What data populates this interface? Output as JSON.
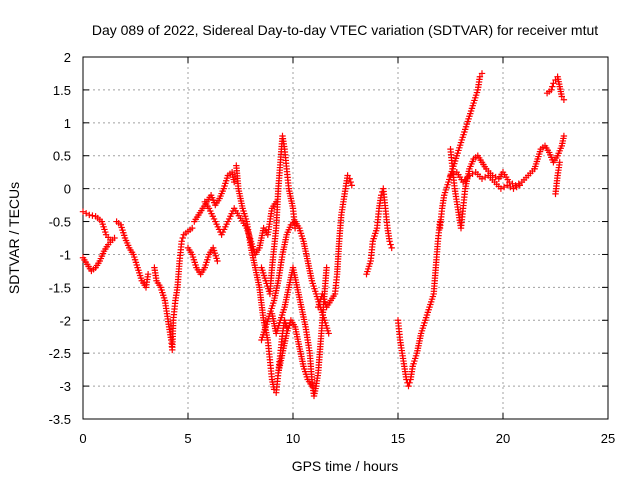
{
  "chart_data": {
    "type": "scatter",
    "title": "Day 089 of 2022, Sidereal Day-to-day VTEC variation (SDTVAR) for receiver mtut",
    "xlabel": "GPS time / hours",
    "ylabel": "SDTVAR / TECUs",
    "xlim": [
      0,
      25
    ],
    "ylim": [
      -3.5,
      2
    ],
    "xticks": [
      0,
      5,
      10,
      15,
      20,
      25
    ],
    "xtick_labels": [
      "0",
      "5",
      "10",
      "15",
      "20",
      "25"
    ],
    "yticks": [
      -3.5,
      -3,
      -2.5,
      -2,
      -1.5,
      -1,
      -0.5,
      0,
      0.5,
      1,
      1.5,
      2
    ],
    "ytick_labels": [
      "-3.5",
      "-3",
      "-2.5",
      "-2",
      "-1.5",
      "-1",
      "-0.5",
      "0",
      "0.5",
      "1",
      "1.5",
      "2"
    ],
    "grid": true,
    "marker": "plus",
    "color": "#ff0000",
    "series": [
      {
        "values": [
          [
            0.0,
            -0.35
          ],
          [
            0.3,
            -0.4
          ],
          [
            0.6,
            -0.42
          ],
          [
            0.9,
            -0.5
          ],
          [
            1.1,
            -0.7
          ],
          [
            1.3,
            -0.78
          ],
          [
            1.5,
            -0.75
          ]
        ]
      },
      {
        "values": [
          [
            0.0,
            -1.05
          ],
          [
            0.2,
            -1.15
          ],
          [
            0.4,
            -1.25
          ],
          [
            0.6,
            -1.2
          ],
          [
            0.8,
            -1.1
          ],
          [
            1.0,
            -0.95
          ],
          [
            1.2,
            -0.85
          ],
          [
            1.4,
            -0.78
          ]
        ]
      },
      {
        "values": [
          [
            1.6,
            -0.5
          ],
          [
            1.8,
            -0.55
          ],
          [
            2.0,
            -0.75
          ],
          [
            2.2,
            -0.9
          ],
          [
            2.4,
            -1.0
          ],
          [
            2.6,
            -1.2
          ],
          [
            2.8,
            -1.4
          ],
          [
            3.0,
            -1.5
          ],
          [
            3.1,
            -1.3
          ]
        ]
      },
      {
        "values": [
          [
            3.4,
            -1.2
          ],
          [
            3.5,
            -1.4
          ],
          [
            3.7,
            -1.5
          ],
          [
            3.9,
            -1.7
          ],
          [
            4.0,
            -1.9
          ],
          [
            4.1,
            -2.1
          ],
          [
            4.2,
            -2.3
          ],
          [
            4.25,
            -2.45
          ],
          [
            4.3,
            -2.0
          ],
          [
            4.4,
            -1.7
          ],
          [
            4.5,
            -1.5
          ],
          [
            4.6,
            -1.1
          ],
          [
            4.7,
            -0.8
          ],
          [
            4.8,
            -0.7
          ],
          [
            5.0,
            -0.65
          ],
          [
            5.2,
            -0.6
          ]
        ]
      },
      {
        "values": [
          [
            5.0,
            -0.9
          ],
          [
            5.2,
            -1.0
          ],
          [
            5.4,
            -1.2
          ],
          [
            5.6,
            -1.3
          ],
          [
            5.8,
            -1.2
          ],
          [
            6.0,
            -1.0
          ],
          [
            6.2,
            -0.9
          ],
          [
            6.4,
            -1.1
          ]
        ]
      },
      {
        "values": [
          [
            5.3,
            -0.5
          ],
          [
            5.5,
            -0.4
          ],
          [
            5.7,
            -0.3
          ],
          [
            5.9,
            -0.2
          ],
          [
            6.1,
            -0.1
          ],
          [
            6.3,
            -0.25
          ],
          [
            6.5,
            -0.15
          ],
          [
            6.7,
            0.0
          ],
          [
            6.9,
            0.2
          ],
          [
            7.1,
            0.25
          ],
          [
            7.2,
            0.1
          ]
        ]
      },
      {
        "values": [
          [
            5.8,
            -0.2
          ],
          [
            6.0,
            -0.3
          ],
          [
            6.3,
            -0.5
          ],
          [
            6.6,
            -0.7
          ],
          [
            6.9,
            -0.5
          ],
          [
            7.2,
            -0.3
          ],
          [
            7.5,
            -0.45
          ],
          [
            7.8,
            -0.6
          ],
          [
            8.0,
            -0.8
          ],
          [
            8.2,
            -1.0
          ],
          [
            8.4,
            -0.9
          ],
          [
            8.6,
            -0.6
          ],
          [
            8.8,
            -0.7
          ],
          [
            9.0,
            -0.3
          ],
          [
            9.2,
            -0.2
          ]
        ]
      },
      {
        "values": [
          [
            7.3,
            0.35
          ],
          [
            7.4,
            0.0
          ],
          [
            7.6,
            -0.3
          ],
          [
            7.8,
            -0.5
          ],
          [
            8.0,
            -0.9
          ],
          [
            8.2,
            -1.2
          ],
          [
            8.4,
            -1.5
          ],
          [
            8.6,
            -2.0
          ],
          [
            8.8,
            -2.3
          ],
          [
            8.9,
            -2.6
          ],
          [
            9.0,
            -2.9
          ],
          [
            9.1,
            -3.05
          ],
          [
            9.2,
            -3.1
          ],
          [
            9.3,
            -2.8
          ],
          [
            9.4,
            -2.5
          ],
          [
            9.5,
            -2.2
          ],
          [
            9.6,
            -2.0
          ],
          [
            9.7,
            -2.1
          ]
        ]
      },
      {
        "values": [
          [
            8.5,
            -1.2
          ],
          [
            8.7,
            -1.4
          ],
          [
            8.9,
            -1.6
          ],
          [
            9.0,
            -1.2
          ],
          [
            9.2,
            -0.6
          ],
          [
            9.3,
            0.0
          ],
          [
            9.4,
            0.4
          ],
          [
            9.5,
            0.8
          ],
          [
            9.6,
            0.6
          ],
          [
            9.7,
            0.3
          ],
          [
            9.8,
            0.0
          ],
          [
            10.0,
            -0.3
          ],
          [
            10.1,
            -0.6
          ]
        ]
      },
      {
        "values": [
          [
            8.5,
            -2.3
          ],
          [
            8.7,
            -2.1
          ],
          [
            8.9,
            -1.9
          ],
          [
            9.1,
            -1.7
          ],
          [
            9.3,
            -1.4
          ],
          [
            9.5,
            -1.0
          ],
          [
            9.7,
            -0.7
          ],
          [
            9.9,
            -0.55
          ],
          [
            10.1,
            -0.5
          ],
          [
            10.3,
            -0.6
          ],
          [
            10.5,
            -0.8
          ],
          [
            10.7,
            -1.1
          ],
          [
            10.9,
            -1.4
          ],
          [
            11.1,
            -1.6
          ],
          [
            11.3,
            -1.8
          ],
          [
            11.5,
            -2.0
          ],
          [
            11.7,
            -2.2
          ]
        ]
      },
      {
        "values": [
          [
            9.0,
            -1.9
          ],
          [
            9.2,
            -2.2
          ],
          [
            9.4,
            -2.0
          ],
          [
            9.6,
            -1.8
          ],
          [
            9.8,
            -1.5
          ],
          [
            10.0,
            -1.2
          ],
          [
            10.2,
            -1.5
          ],
          [
            10.4,
            -1.8
          ],
          [
            10.6,
            -2.1
          ],
          [
            10.8,
            -2.5
          ],
          [
            10.9,
            -2.9
          ],
          [
            11.0,
            -3.15
          ],
          [
            11.1,
            -3.0
          ],
          [
            11.2,
            -2.8
          ],
          [
            11.3,
            -2.4
          ],
          [
            11.4,
            -2.0
          ],
          [
            11.5,
            -1.6
          ],
          [
            11.6,
            -1.2
          ]
        ]
      },
      {
        "values": [
          [
            9.3,
            -2.8
          ],
          [
            9.5,
            -2.5
          ],
          [
            9.7,
            -2.2
          ],
          [
            9.9,
            -2.0
          ],
          [
            10.1,
            -2.1
          ],
          [
            10.3,
            -2.4
          ],
          [
            10.5,
            -2.7
          ],
          [
            10.7,
            -2.9
          ],
          [
            10.9,
            -3.0
          ]
        ]
      },
      {
        "values": [
          [
            11.2,
            -1.8
          ],
          [
            11.4,
            -1.6
          ],
          [
            11.6,
            -1.8
          ],
          [
            11.8,
            -1.7
          ],
          [
            12.0,
            -1.6
          ],
          [
            12.1,
            -1.3
          ],
          [
            12.2,
            -0.8
          ],
          [
            12.3,
            -0.4
          ],
          [
            12.5,
            0.0
          ],
          [
            12.6,
            0.2
          ],
          [
            12.7,
            0.15
          ],
          [
            12.8,
            0.05
          ]
        ]
      },
      {
        "values": [
          [
            13.5,
            -1.3
          ],
          [
            13.7,
            -1.1
          ],
          [
            13.8,
            -0.8
          ],
          [
            14.0,
            -0.6
          ],
          [
            14.1,
            -0.3
          ],
          [
            14.2,
            -0.1
          ],
          [
            14.3,
            0.0
          ],
          [
            14.4,
            -0.3
          ],
          [
            14.5,
            -0.6
          ],
          [
            14.6,
            -0.8
          ],
          [
            14.7,
            -0.9
          ]
        ]
      },
      {
        "values": [
          [
            15.0,
            -2.0
          ],
          [
            15.1,
            -2.3
          ],
          [
            15.2,
            -2.5
          ],
          [
            15.3,
            -2.7
          ],
          [
            15.4,
            -2.9
          ],
          [
            15.5,
            -3.0
          ],
          [
            15.6,
            -2.9
          ],
          [
            15.7,
            -2.7
          ],
          [
            15.9,
            -2.5
          ],
          [
            16.1,
            -2.2
          ],
          [
            16.3,
            -2.0
          ],
          [
            16.5,
            -1.8
          ],
          [
            16.7,
            -1.6
          ],
          [
            16.8,
            -1.2
          ],
          [
            16.9,
            -0.8
          ],
          [
            17.0,
            -0.5
          ]
        ]
      },
      {
        "values": [
          [
            17.0,
            -0.6
          ],
          [
            17.1,
            -0.3
          ],
          [
            17.2,
            -0.1
          ],
          [
            17.4,
            0.1
          ],
          [
            17.6,
            0.3
          ],
          [
            17.8,
            0.5
          ],
          [
            18.0,
            0.7
          ],
          [
            18.2,
            0.9
          ],
          [
            18.4,
            1.1
          ],
          [
            18.6,
            1.3
          ],
          [
            18.8,
            1.5
          ],
          [
            18.9,
            1.7
          ],
          [
            19.0,
            1.75
          ]
        ]
      },
      {
        "values": [
          [
            17.5,
            0.6
          ],
          [
            17.6,
            0.3
          ],
          [
            17.7,
            0.0
          ],
          [
            17.8,
            -0.2
          ],
          [
            17.9,
            -0.4
          ],
          [
            18.0,
            -0.6
          ],
          [
            18.1,
            -0.3
          ],
          [
            18.2,
            0.0
          ],
          [
            18.4,
            0.3
          ],
          [
            18.6,
            0.45
          ],
          [
            18.8,
            0.5
          ],
          [
            19.0,
            0.4
          ],
          [
            19.2,
            0.3
          ],
          [
            19.5,
            0.2
          ],
          [
            19.8,
            0.15
          ],
          [
            20.0,
            0.25
          ],
          [
            20.3,
            0.1
          ],
          [
            20.6,
            0.05
          ],
          [
            20.9,
            0.1
          ],
          [
            21.2,
            0.2
          ],
          [
            21.5,
            0.3
          ]
        ]
      },
      {
        "values": [
          [
            17.5,
            0.2
          ],
          [
            17.8,
            0.25
          ],
          [
            18.1,
            0.1
          ],
          [
            18.4,
            0.2
          ],
          [
            18.7,
            0.25
          ],
          [
            19.0,
            0.15
          ],
          [
            19.3,
            0.2
          ],
          [
            19.6,
            0.1
          ],
          [
            19.9,
            0.0
          ],
          [
            20.2,
            0.05
          ],
          [
            20.5,
            0.0
          ],
          [
            20.8,
            0.05
          ]
        ]
      },
      {
        "values": [
          [
            21.5,
            0.3
          ],
          [
            21.8,
            0.6
          ],
          [
            22.0,
            0.65
          ],
          [
            22.2,
            0.55
          ],
          [
            22.4,
            0.4
          ],
          [
            22.6,
            0.5
          ],
          [
            22.8,
            0.65
          ],
          [
            22.9,
            0.8
          ]
        ]
      },
      {
        "values": [
          [
            22.1,
            1.45
          ],
          [
            22.3,
            1.5
          ],
          [
            22.4,
            1.6
          ],
          [
            22.5,
            1.65
          ],
          [
            22.6,
            1.7
          ],
          [
            22.7,
            1.55
          ],
          [
            22.8,
            1.4
          ],
          [
            22.9,
            1.35
          ]
        ]
      },
      {
        "values": [
          [
            22.5,
            -0.08
          ],
          [
            22.6,
            0.2
          ],
          [
            22.7,
            0.4
          ]
        ]
      }
    ]
  }
}
